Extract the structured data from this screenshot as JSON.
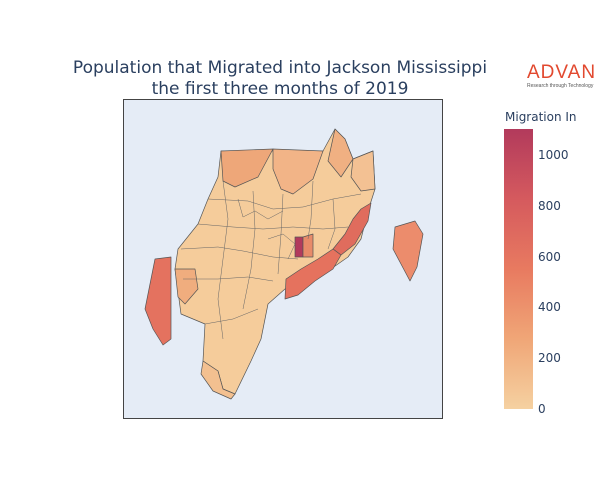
{
  "title": {
    "line1": "Population that Migrated into Jackson Mississippi",
    "line2": "the first three months of 2019"
  },
  "logo": {
    "name": "ADVAN",
    "tagline": "Research through Technology",
    "color": "#e2492f"
  },
  "colorbar": {
    "title": "Migration In",
    "min": 0,
    "max": 1100,
    "ticks": [
      "0",
      "200",
      "400",
      "600",
      "800",
      "1000"
    ],
    "colors": [
      "#f5d1a1",
      "#f0a677",
      "#e87a60",
      "#d55a5e",
      "#b23a5c"
    ]
  },
  "map": {
    "background": "#e5ecf6",
    "border_color": "#444444"
  }
}
